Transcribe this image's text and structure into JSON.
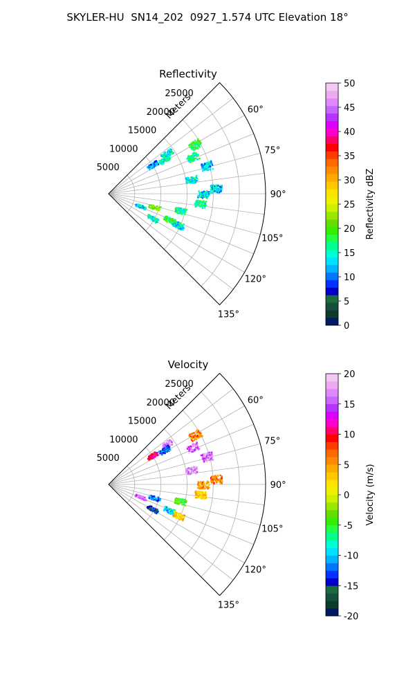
{
  "page_title": "SKYLER-HU  SN14_202  0927_1.574 UTC Elevation 18°",
  "chart_data": [
    {
      "type": "polar_sector_scatter",
      "title": "Reflectivity",
      "radial_label": "Meters",
      "radial_ticks": [
        5000,
        10000,
        15000,
        20000,
        25000
      ],
      "rlim": [
        0,
        30000
      ],
      "angle_ticks": [
        "60°",
        "75°",
        "90°",
        "105°",
        "120°",
        "135°"
      ],
      "angle_tick_values": [
        60,
        75,
        90,
        105,
        120,
        135
      ],
      "theta_range_deg": [
        45,
        135
      ],
      "grid": true,
      "colorbar": {
        "label": "Reflectivity dBZ",
        "ticks": [
          0,
          5,
          10,
          15,
          20,
          25,
          30,
          35,
          40,
          45,
          50
        ],
        "range": [
          0,
          50
        ],
        "colors": [
          "#001a66",
          "#0d3b2e",
          "#14503c",
          "#1f6b40",
          "#0000c8",
          "#0033ff",
          "#0077ff",
          "#00b4ff",
          "#00e0ff",
          "#00ffd0",
          "#00ff90",
          "#22ff44",
          "#33ee00",
          "#66dd00",
          "#99e600",
          "#ccf000",
          "#eef000",
          "#ffe400",
          "#ffc800",
          "#ffaa00",
          "#ff8c00",
          "#ff6a00",
          "#ff3b00",
          "#ff0000",
          "#ff0066",
          "#ff00cc",
          "#dd00ff",
          "#b733ff",
          "#c866ff",
          "#dd88ff",
          "#eeaaee",
          "#f4c8f4"
        ]
      },
      "clusters": [
        {
          "az": 56,
          "r": 10000,
          "value": 11
        },
        {
          "az": 55,
          "r": 13500,
          "value": 14
        },
        {
          "az": 58,
          "r": 12500,
          "value": 15
        },
        {
          "az": 60,
          "r": 19000,
          "value": 18
        },
        {
          "az": 66,
          "r": 17500,
          "value": 16
        },
        {
          "az": 74,
          "r": 19500,
          "value": 13
        },
        {
          "az": 80,
          "r": 16000,
          "value": 14
        },
        {
          "az": 87,
          "r": 20500,
          "value": 13
        },
        {
          "az": 90,
          "r": 18000,
          "value": 14
        },
        {
          "az": 96,
          "r": 17500,
          "value": 16
        },
        {
          "az": 103,
          "r": 14000,
          "value": 15
        },
        {
          "az": 111,
          "r": 6500,
          "value": 14
        },
        {
          "az": 106,
          "r": 9000,
          "value": 21
        },
        {
          "az": 119,
          "r": 9500,
          "value": 15
        },
        {
          "az": 113,
          "r": 12500,
          "value": 18
        },
        {
          "az": 114,
          "r": 14500,
          "value": 14
        }
      ]
    },
    {
      "type": "polar_sector_scatter",
      "title": "Velocity",
      "radial_label": "Meters",
      "radial_ticks": [
        5000,
        10000,
        15000,
        20000,
        25000
      ],
      "rlim": [
        0,
        30000
      ],
      "angle_ticks": [
        "60°",
        "75°",
        "90°",
        "105°",
        "120°",
        "135°"
      ],
      "angle_tick_values": [
        60,
        75,
        90,
        105,
        120,
        135
      ],
      "theta_range_deg": [
        45,
        135
      ],
      "grid": true,
      "colorbar": {
        "label": "Velocity (m/s)",
        "ticks": [
          -20,
          -15,
          -10,
          -5,
          0,
          5,
          10,
          15,
          20
        ],
        "range": [
          -20,
          20
        ],
        "colors": [
          "#001a66",
          "#0d3b2e",
          "#14503c",
          "#1f6b40",
          "#0000c8",
          "#0033ff",
          "#0077ff",
          "#00b4ff",
          "#00e0ff",
          "#00ffd0",
          "#00ff90",
          "#22ff44",
          "#33ee00",
          "#66dd00",
          "#99e600",
          "#ccf000",
          "#eef000",
          "#ffe400",
          "#ffc800",
          "#ffaa00",
          "#ff8c00",
          "#ff6a00",
          "#ff3b00",
          "#ff0000",
          "#ff0066",
          "#ff00cc",
          "#dd00ff",
          "#b733ff",
          "#c866ff",
          "#dd88ff",
          "#eeaaee",
          "#f4c8f4"
        ]
      },
      "clusters": [
        {
          "az": 56,
          "r": 10000,
          "value": 11
        },
        {
          "az": 55,
          "r": 13500,
          "value": 17
        },
        {
          "az": 58,
          "r": 12500,
          "value": -12
        },
        {
          "az": 60,
          "r": 19000,
          "value": 6
        },
        {
          "az": 66,
          "r": 17500,
          "value": 16
        },
        {
          "az": 74,
          "r": 19500,
          "value": 16
        },
        {
          "az": 80,
          "r": 16000,
          "value": 17
        },
        {
          "az": 87,
          "r": 20500,
          "value": 6
        },
        {
          "az": 90,
          "r": 18000,
          "value": 5
        },
        {
          "az": 96,
          "r": 17500,
          "value": 3
        },
        {
          "az": 103,
          "r": 14000,
          "value": -4
        },
        {
          "az": 111,
          "r": 6500,
          "value": 16
        },
        {
          "az": 106,
          "r": 9000,
          "value": -12
        },
        {
          "az": 119,
          "r": 9500,
          "value": -14
        },
        {
          "az": 113,
          "r": 12500,
          "value": -10
        },
        {
          "az": 114,
          "r": 14500,
          "value": 3
        }
      ]
    }
  ]
}
